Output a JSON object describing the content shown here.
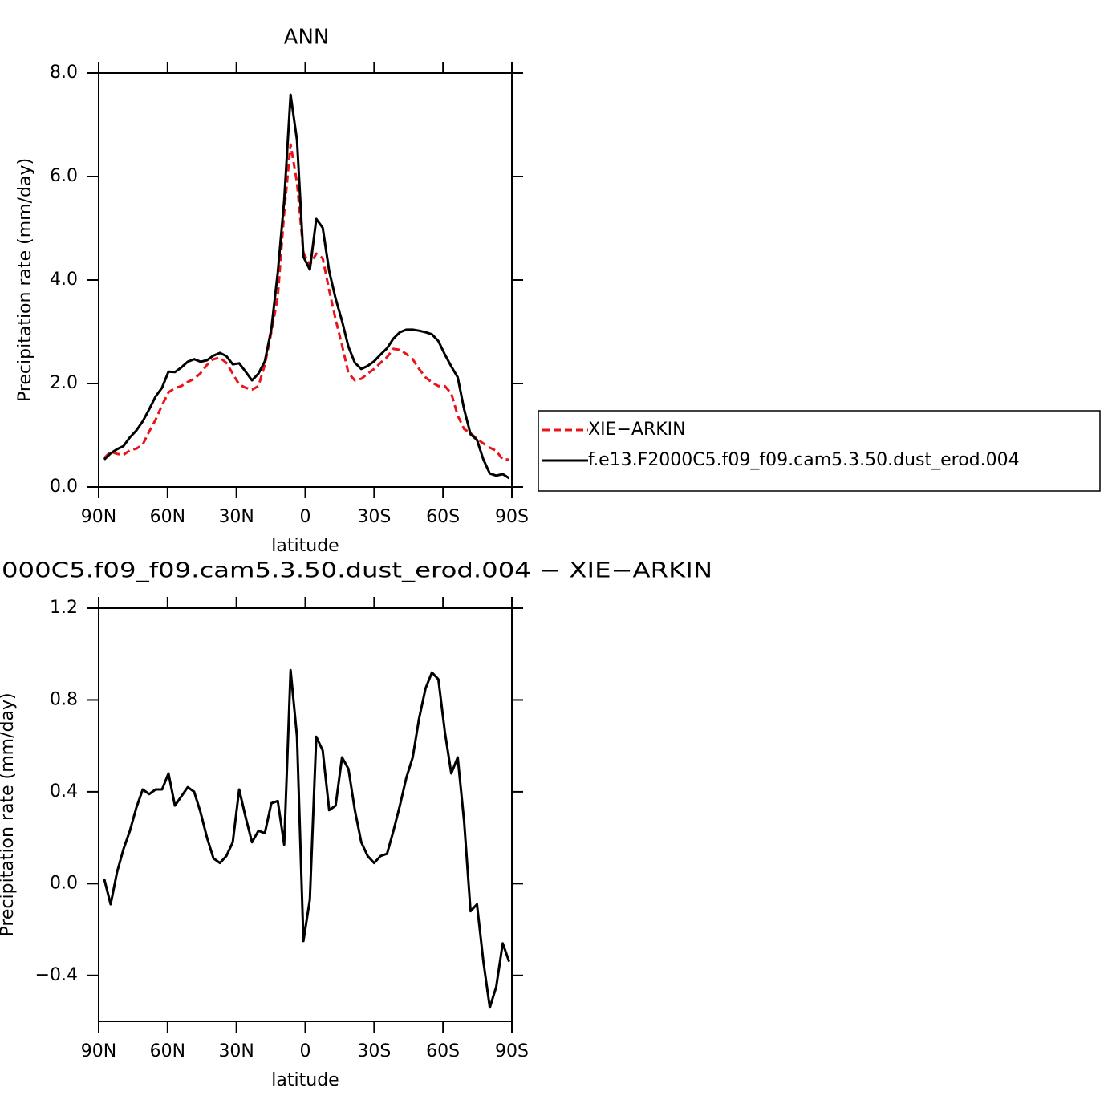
{
  "chart_data": [
    {
      "type": "line",
      "title": "ANN",
      "xlabel": "latitude",
      "ylabel": "Precipitation rate (mm/day)",
      "x": [
        87.6,
        84.8,
        82.0,
        79.2,
        76.4,
        73.6,
        70.8,
        68.0,
        65.2,
        62.4,
        59.6,
        56.8,
        54.0,
        51.2,
        48.4,
        45.6,
        42.8,
        40.0,
        37.2,
        34.4,
        31.6,
        28.8,
        26.0,
        23.2,
        20.4,
        17.6,
        14.8,
        12.0,
        9.2,
        6.4,
        3.6,
        0.8,
        -2.0,
        -4.8,
        -7.6,
        -10.4,
        -13.2,
        -16.0,
        -18.8,
        -21.6,
        -24.4,
        -27.2,
        -30.0,
        -32.8,
        -35.6,
        -38.4,
        -41.2,
        -44.0,
        -46.8,
        -49.6,
        -52.4,
        -55.2,
        -58.0,
        -60.8,
        -63.6,
        -66.4,
        -69.2,
        -72.0,
        -74.8,
        -77.6,
        -80.4,
        -83.2,
        -86.0,
        -88.8
      ],
      "series": [
        {
          "name": "XIE−ARKIN",
          "color": "#e8141a",
          "dashed": true,
          "values": [
            0.56,
            0.68,
            0.64,
            0.62,
            0.71,
            0.74,
            0.82,
            1.07,
            1.3,
            1.58,
            1.83,
            1.91,
            1.95,
            2.03,
            2.09,
            2.2,
            2.36,
            2.47,
            2.5,
            2.4,
            2.19,
            1.98,
            1.92,
            1.88,
            1.95,
            2.36,
            2.99,
            3.67,
            5.3,
            6.62,
            5.88,
            4.53,
            4.29,
            4.51,
            4.42,
            3.8,
            3.24,
            2.74,
            2.2,
            2.06,
            2.09,
            2.19,
            2.28,
            2.4,
            2.51,
            2.67,
            2.65,
            2.57,
            2.47,
            2.28,
            2.12,
            2.02,
            1.95,
            1.95,
            1.81,
            1.38,
            1.12,
            1.04,
            0.93,
            0.84,
            0.76,
            0.7,
            0.53,
            0.53
          ]
        },
        {
          "name": "f.e13.F2000C5.f09_f09.cam5.3.50.dust_erod.004",
          "color": "#000000",
          "dashed": false,
          "values": [
            0.53,
            0.65,
            0.73,
            0.79,
            0.96,
            1.09,
            1.27,
            1.5,
            1.75,
            1.92,
            2.23,
            2.22,
            2.31,
            2.42,
            2.47,
            2.42,
            2.45,
            2.54,
            2.59,
            2.53,
            2.37,
            2.39,
            2.23,
            2.06,
            2.19,
            2.43,
            3.05,
            4.14,
            5.53,
            7.58,
            6.7,
            4.45,
            4.2,
            5.18,
            5.01,
            4.17,
            3.64,
            3.21,
            2.71,
            2.4,
            2.28,
            2.34,
            2.43,
            2.56,
            2.68,
            2.87,
            2.99,
            3.04,
            3.04,
            3.02,
            2.99,
            2.95,
            2.82,
            2.56,
            2.33,
            2.12,
            1.5,
            1.02,
            0.91,
            0.53,
            0.26,
            0.22,
            0.25,
            0.17
          ]
        }
      ],
      "xlim": [
        90,
        -90
      ],
      "xticks": [
        {
          "value": 90,
          "label": "90N"
        },
        {
          "value": 60,
          "label": "60N"
        },
        {
          "value": 30,
          "label": "30N"
        },
        0,
        {
          "value": -30,
          "label": "30S"
        },
        {
          "value": -60,
          "label": "60S"
        },
        {
          "value": -90,
          "label": "90S"
        }
      ],
      "ylim": [
        0,
        8
      ],
      "yticks": [
        {
          "value": 0,
          "label": "0.0"
        },
        {
          "value": 2,
          "label": "2.0"
        },
        {
          "value": 4,
          "label": "4.0"
        },
        {
          "value": 6,
          "label": "6.0"
        },
        {
          "value": 8,
          "label": "8.0"
        }
      ],
      "legend": "right"
    },
    {
      "type": "line",
      "title": "000C5.f09_f09.cam5.3.50.dust_erod.004 − XIE−ARKIN",
      "xlabel": "latitude",
      "ylabel": "Precipitation rate (mm/day)",
      "x": [
        87.6,
        84.8,
        82.0,
        79.2,
        76.4,
        73.6,
        70.8,
        68.0,
        65.2,
        62.4,
        59.6,
        56.8,
        54.0,
        51.2,
        48.4,
        45.6,
        42.8,
        40.0,
        37.2,
        34.4,
        31.6,
        28.8,
        26.0,
        23.2,
        20.4,
        17.6,
        14.8,
        12.0,
        9.2,
        6.4,
        3.6,
        0.8,
        -2.0,
        -4.8,
        -7.6,
        -10.4,
        -13.2,
        -16.0,
        -18.8,
        -21.6,
        -24.4,
        -27.2,
        -30.0,
        -32.8,
        -35.6,
        -38.4,
        -41.2,
        -44.0,
        -46.8,
        -49.6,
        -52.4,
        -55.2,
        -58.0,
        -60.8,
        -63.6,
        -66.4,
        -69.2,
        -72.0,
        -74.8,
        -77.6,
        -80.4,
        -83.2,
        -86.0,
        -88.8
      ],
      "series": [
        {
          "color": "#000000",
          "dashed": false,
          "values": [
            0.02,
            -0.09,
            0.05,
            0.15,
            0.23,
            0.33,
            0.41,
            0.39,
            0.41,
            0.41,
            0.48,
            0.34,
            0.38,
            0.42,
            0.4,
            0.31,
            0.2,
            0.11,
            0.09,
            0.12,
            0.18,
            0.41,
            0.29,
            0.18,
            0.23,
            0.22,
            0.35,
            0.36,
            0.17,
            0.93,
            0.64,
            -0.25,
            -0.07,
            0.64,
            0.58,
            0.32,
            0.34,
            0.55,
            0.5,
            0.32,
            0.18,
            0.12,
            0.09,
            0.12,
            0.13,
            0.23,
            0.34,
            0.46,
            0.55,
            0.72,
            0.85,
            0.92,
            0.89,
            0.66,
            0.48,
            0.55,
            0.27,
            -0.12,
            -0.09,
            -0.34,
            -0.54,
            -0.45,
            -0.26,
            -0.34
          ]
        }
      ],
      "xlim": [
        90,
        -90
      ],
      "xticks": [
        {
          "value": 90,
          "label": "90N"
        },
        {
          "value": 60,
          "label": "60N"
        },
        {
          "value": 30,
          "label": "30N"
        },
        0,
        {
          "value": -30,
          "label": "30S"
        },
        {
          "value": -60,
          "label": "60S"
        },
        {
          "value": -90,
          "label": "90S"
        }
      ],
      "ylim": [
        -0.6,
        1.2
      ],
      "yticks": [
        {
          "value": -0.4,
          "label": "−0.4"
        },
        {
          "value": 0,
          "label": "0.0"
        },
        {
          "value": 0.4,
          "label": "0.4"
        },
        {
          "value": 0.8,
          "label": "0.8"
        },
        {
          "value": 1.2,
          "label": "1.2"
        }
      ]
    }
  ]
}
